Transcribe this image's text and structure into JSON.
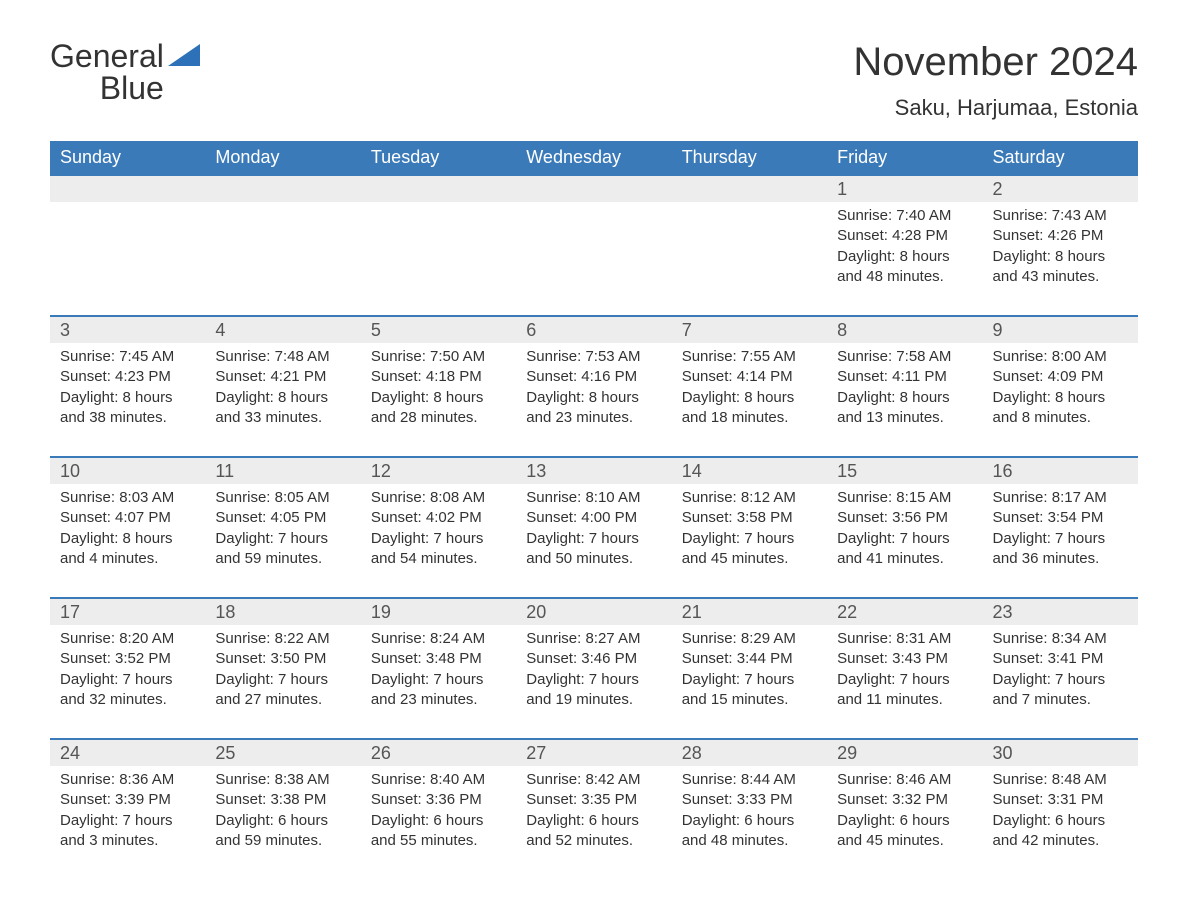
{
  "logo": {
    "word1": "General",
    "word2": "Blue"
  },
  "title": "November 2024",
  "location": "Saku, Harjumaa, Estonia",
  "colors": {
    "header_bg": "#3b7ab8",
    "header_text": "#ffffff",
    "daynum_bg": "#ededed",
    "border": "#3b7ab8",
    "logo_blue": "#2d72b8",
    "body_text": "#333333"
  },
  "typography": {
    "title_fontsize": 40,
    "location_fontsize": 22,
    "header_fontsize": 18,
    "daynum_fontsize": 18,
    "body_fontsize": 15
  },
  "day_headers": [
    "Sunday",
    "Monday",
    "Tuesday",
    "Wednesday",
    "Thursday",
    "Friday",
    "Saturday"
  ],
  "weeks": [
    [
      {
        "empty": true
      },
      {
        "empty": true
      },
      {
        "empty": true
      },
      {
        "empty": true
      },
      {
        "empty": true
      },
      {
        "num": "1",
        "sunrise": "Sunrise: 7:40 AM",
        "sunset": "Sunset: 4:28 PM",
        "day1": "Daylight: 8 hours",
        "day2": "and 48 minutes."
      },
      {
        "num": "2",
        "sunrise": "Sunrise: 7:43 AM",
        "sunset": "Sunset: 4:26 PM",
        "day1": "Daylight: 8 hours",
        "day2": "and 43 minutes."
      }
    ],
    [
      {
        "num": "3",
        "sunrise": "Sunrise: 7:45 AM",
        "sunset": "Sunset: 4:23 PM",
        "day1": "Daylight: 8 hours",
        "day2": "and 38 minutes."
      },
      {
        "num": "4",
        "sunrise": "Sunrise: 7:48 AM",
        "sunset": "Sunset: 4:21 PM",
        "day1": "Daylight: 8 hours",
        "day2": "and 33 minutes."
      },
      {
        "num": "5",
        "sunrise": "Sunrise: 7:50 AM",
        "sunset": "Sunset: 4:18 PM",
        "day1": "Daylight: 8 hours",
        "day2": "and 28 minutes."
      },
      {
        "num": "6",
        "sunrise": "Sunrise: 7:53 AM",
        "sunset": "Sunset: 4:16 PM",
        "day1": "Daylight: 8 hours",
        "day2": "and 23 minutes."
      },
      {
        "num": "7",
        "sunrise": "Sunrise: 7:55 AM",
        "sunset": "Sunset: 4:14 PM",
        "day1": "Daylight: 8 hours",
        "day2": "and 18 minutes."
      },
      {
        "num": "8",
        "sunrise": "Sunrise: 7:58 AM",
        "sunset": "Sunset: 4:11 PM",
        "day1": "Daylight: 8 hours",
        "day2": "and 13 minutes."
      },
      {
        "num": "9",
        "sunrise": "Sunrise: 8:00 AM",
        "sunset": "Sunset: 4:09 PM",
        "day1": "Daylight: 8 hours",
        "day2": "and 8 minutes."
      }
    ],
    [
      {
        "num": "10",
        "sunrise": "Sunrise: 8:03 AM",
        "sunset": "Sunset: 4:07 PM",
        "day1": "Daylight: 8 hours",
        "day2": "and 4 minutes."
      },
      {
        "num": "11",
        "sunrise": "Sunrise: 8:05 AM",
        "sunset": "Sunset: 4:05 PM",
        "day1": "Daylight: 7 hours",
        "day2": "and 59 minutes."
      },
      {
        "num": "12",
        "sunrise": "Sunrise: 8:08 AM",
        "sunset": "Sunset: 4:02 PM",
        "day1": "Daylight: 7 hours",
        "day2": "and 54 minutes."
      },
      {
        "num": "13",
        "sunrise": "Sunrise: 8:10 AM",
        "sunset": "Sunset: 4:00 PM",
        "day1": "Daylight: 7 hours",
        "day2": "and 50 minutes."
      },
      {
        "num": "14",
        "sunrise": "Sunrise: 8:12 AM",
        "sunset": "Sunset: 3:58 PM",
        "day1": "Daylight: 7 hours",
        "day2": "and 45 minutes."
      },
      {
        "num": "15",
        "sunrise": "Sunrise: 8:15 AM",
        "sunset": "Sunset: 3:56 PM",
        "day1": "Daylight: 7 hours",
        "day2": "and 41 minutes."
      },
      {
        "num": "16",
        "sunrise": "Sunrise: 8:17 AM",
        "sunset": "Sunset: 3:54 PM",
        "day1": "Daylight: 7 hours",
        "day2": "and 36 minutes."
      }
    ],
    [
      {
        "num": "17",
        "sunrise": "Sunrise: 8:20 AM",
        "sunset": "Sunset: 3:52 PM",
        "day1": "Daylight: 7 hours",
        "day2": "and 32 minutes."
      },
      {
        "num": "18",
        "sunrise": "Sunrise: 8:22 AM",
        "sunset": "Sunset: 3:50 PM",
        "day1": "Daylight: 7 hours",
        "day2": "and 27 minutes."
      },
      {
        "num": "19",
        "sunrise": "Sunrise: 8:24 AM",
        "sunset": "Sunset: 3:48 PM",
        "day1": "Daylight: 7 hours",
        "day2": "and 23 minutes."
      },
      {
        "num": "20",
        "sunrise": "Sunrise: 8:27 AM",
        "sunset": "Sunset: 3:46 PM",
        "day1": "Daylight: 7 hours",
        "day2": "and 19 minutes."
      },
      {
        "num": "21",
        "sunrise": "Sunrise: 8:29 AM",
        "sunset": "Sunset: 3:44 PM",
        "day1": "Daylight: 7 hours",
        "day2": "and 15 minutes."
      },
      {
        "num": "22",
        "sunrise": "Sunrise: 8:31 AM",
        "sunset": "Sunset: 3:43 PM",
        "day1": "Daylight: 7 hours",
        "day2": "and 11 minutes."
      },
      {
        "num": "23",
        "sunrise": "Sunrise: 8:34 AM",
        "sunset": "Sunset: 3:41 PM",
        "day1": "Daylight: 7 hours",
        "day2": "and 7 minutes."
      }
    ],
    [
      {
        "num": "24",
        "sunrise": "Sunrise: 8:36 AM",
        "sunset": "Sunset: 3:39 PM",
        "day1": "Daylight: 7 hours",
        "day2": "and 3 minutes."
      },
      {
        "num": "25",
        "sunrise": "Sunrise: 8:38 AM",
        "sunset": "Sunset: 3:38 PM",
        "day1": "Daylight: 6 hours",
        "day2": "and 59 minutes."
      },
      {
        "num": "26",
        "sunrise": "Sunrise: 8:40 AM",
        "sunset": "Sunset: 3:36 PM",
        "day1": "Daylight: 6 hours",
        "day2": "and 55 minutes."
      },
      {
        "num": "27",
        "sunrise": "Sunrise: 8:42 AM",
        "sunset": "Sunset: 3:35 PM",
        "day1": "Daylight: 6 hours",
        "day2": "and 52 minutes."
      },
      {
        "num": "28",
        "sunrise": "Sunrise: 8:44 AM",
        "sunset": "Sunset: 3:33 PM",
        "day1": "Daylight: 6 hours",
        "day2": "and 48 minutes."
      },
      {
        "num": "29",
        "sunrise": "Sunrise: 8:46 AM",
        "sunset": "Sunset: 3:32 PM",
        "day1": "Daylight: 6 hours",
        "day2": "and 45 minutes."
      },
      {
        "num": "30",
        "sunrise": "Sunrise: 8:48 AM",
        "sunset": "Sunset: 3:31 PM",
        "day1": "Daylight: 6 hours",
        "day2": "and 42 minutes."
      }
    ]
  ]
}
